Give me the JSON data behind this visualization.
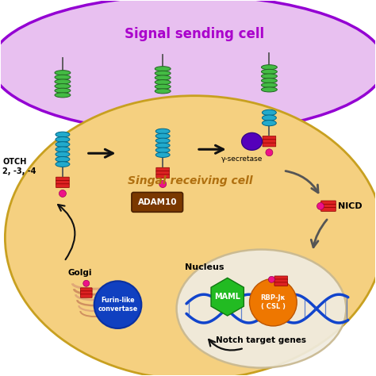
{
  "bg_color": "#ffffff",
  "signal_cell_fill": "#e8c0f0",
  "signal_cell_border": "#9400d3",
  "receiving_cell_fill": "#f5d080",
  "receiving_cell_border": "#c8a020",
  "nucleus_fill": "#f0ece0",
  "nucleus_border": "#c8b890",
  "title_signal": "Signal sending cell",
  "title_signal_color": "#aa00cc",
  "title_receiving": "Singal receiving cell",
  "title_receiving_color": "#b07010",
  "notch_label": "OTCH\n2, -3, -4",
  "adam10_text": "ADAM10",
  "adam10_fill": "#7a3800",
  "adam10_border": "#4a2000",
  "gamma_text": "γ-secretase",
  "gamma_fill": "#5500bb",
  "nicd_text": "NICD",
  "golgi_text": "Golgi",
  "furin_text": "Furin-like\nconvertase",
  "furin_fill": "#1040c0",
  "nucleus_text": "Nucleus",
  "maml_text": "MAML",
  "maml_fill": "#22bb22",
  "maml_border": "#117711",
  "rbp_text": "RBP-Jκ\n( CSL )",
  "rbp_fill": "#ee7700",
  "rbp_border": "#bb5500",
  "notch_target_text": "Notch target genes",
  "green_coil_fill": "#44bb44",
  "green_coil_border": "#226622",
  "blue_coil_fill": "#22aacc",
  "blue_coil_border": "#006688",
  "red_rect_fill": "#dd2222",
  "red_rect_border": "#880000",
  "pink_ball_fill": "#ee1188",
  "pink_ball_border": "#990055",
  "dna_color": "#1144cc",
  "arrow_dark": "#111111",
  "arrow_gray": "#555555",
  "golgi_color": "#e8b888",
  "stem_color": "#555555"
}
